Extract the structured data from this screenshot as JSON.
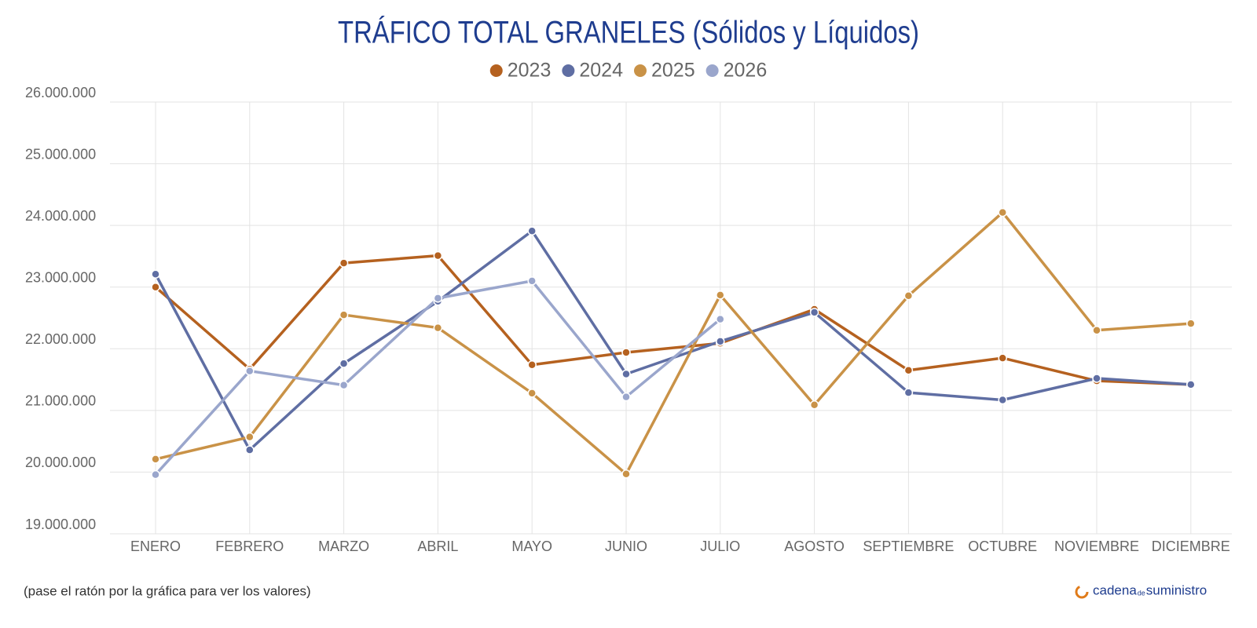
{
  "chart_data": {
    "type": "line",
    "title": "TRÁFICO TOTAL GRANELES (Sólidos y Líquidos)",
    "categories": [
      "ENERO",
      "FEBRERO",
      "MARZO",
      "ABRIL",
      "MAYO",
      "JUNIO",
      "JULIO",
      "AGOSTO",
      "SEPTIEMBRE",
      "OCTUBRE",
      "NOVIEMBRE",
      "DICIEMBRE"
    ],
    "series": [
      {
        "name": "2023",
        "color": "#b5611f",
        "values": [
          23000000,
          21670000,
          23390000,
          23510000,
          21740000,
          21940000,
          22090000,
          22640000,
          21650000,
          21850000,
          21480000,
          21420000
        ]
      },
      {
        "name": "2024",
        "color": "#5f6ea3",
        "values": [
          23210000,
          20360000,
          21760000,
          22770000,
          23910000,
          21590000,
          22120000,
          22590000,
          21290000,
          21170000,
          21520000,
          21420000
        ]
      },
      {
        "name": "2025",
        "color": "#c99247",
        "values": [
          20210000,
          20570000,
          22550000,
          22340000,
          21280000,
          19970000,
          22870000,
          21090000,
          22860000,
          24210000,
          22300000,
          22410000
        ]
      },
      {
        "name": "2026",
        "color": "#9aa6cc",
        "values": [
          19960000,
          21640000,
          21410000,
          22820000,
          23100000,
          21220000,
          22480000,
          null,
          null,
          null,
          null,
          null
        ]
      }
    ],
    "ylim": [
      19000000,
      26000000
    ],
    "yticks": [
      {
        "value": 19000000,
        "label": "19.000.000"
      },
      {
        "value": 20000000,
        "label": "20.000.000"
      },
      {
        "value": 21000000,
        "label": "21.000.000"
      },
      {
        "value": 22000000,
        "label": "22.000.000"
      },
      {
        "value": 23000000,
        "label": "23.000.000"
      },
      {
        "value": 24000000,
        "label": "24.000.000"
      },
      {
        "value": 25000000,
        "label": "25.000.000"
      },
      {
        "value": 26000000,
        "label": "26.000.000"
      }
    ],
    "grid": true,
    "legend": "top",
    "note": "(pase el ratón por la gráfica para ver los valores)",
    "brand": [
      "cadena",
      "de",
      "suministro"
    ]
  }
}
